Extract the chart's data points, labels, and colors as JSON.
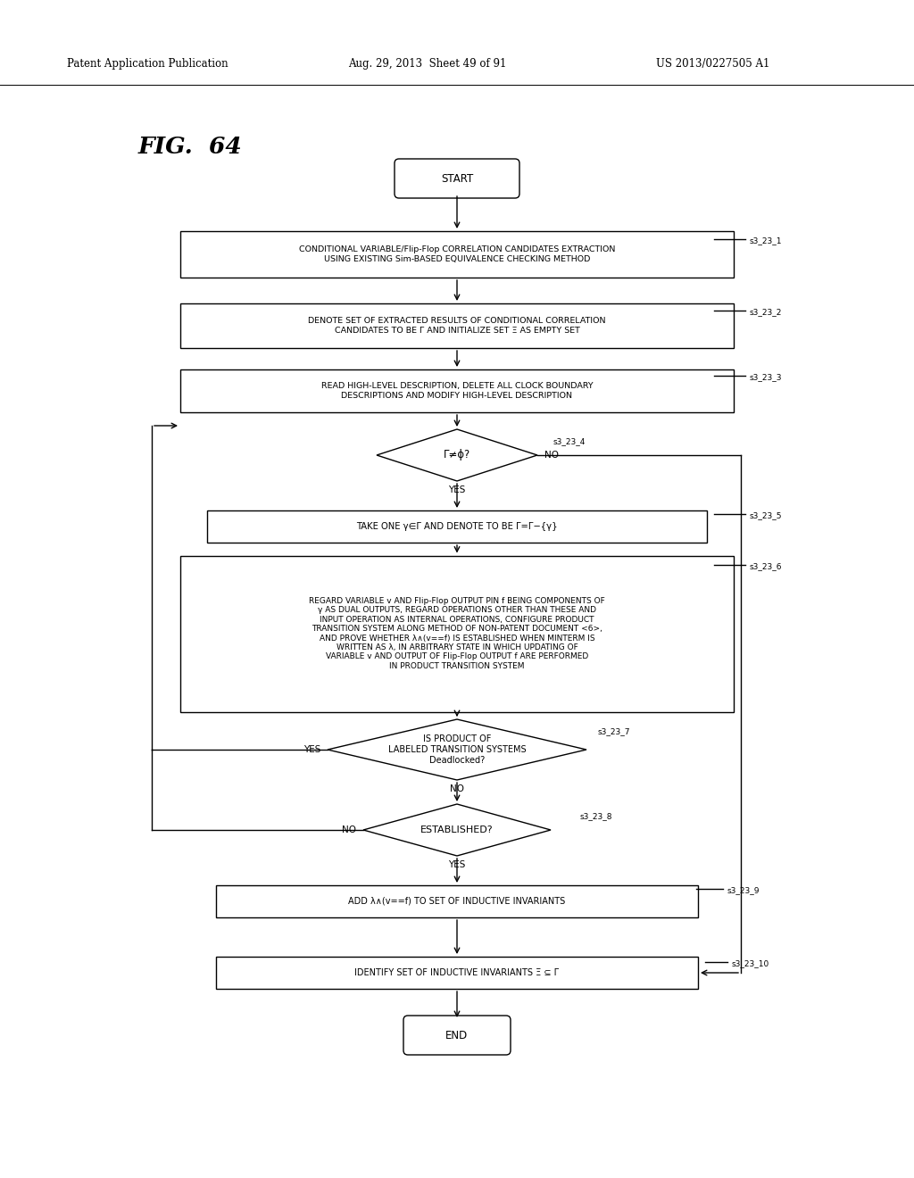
{
  "title": "FIG.  64",
  "header_left": "Patent Application Publication",
  "header_mid": "Aug. 29, 2013  Sheet 49 of 91",
  "header_right": "US 2013/0227505 A1",
  "bg_color": "#ffffff",
  "lw": 1.0,
  "start_label": "START",
  "end_label": "END",
  "s1_text": "CONDITIONAL VARIABLE/Flip-Flop CORRELATION CANDIDATES EXTRACTION\nUSING EXISTING Sim-BASED EQUIVALENCE CHECKING METHOD",
  "s2_text": "DENOTE SET OF EXTRACTED RESULTS OF CONDITIONAL CORRELATION\nCANDIDATES TO BE Γ AND INITIALIZE SET Ξ AS EMPTY SET",
  "s3_text": "READ HIGH-LEVEL DESCRIPTION, DELETE ALL CLOCK BOUNDARY\nDESCRIPTIONS AND MODIFY HIGH-LEVEL DESCRIPTION",
  "s4_text": "Γ≠ϕ?",
  "s5_text": "TAKE ONE γ∈Γ AND DENOTE TO BE Γ=Γ−{γ}",
  "s6_text": "REGARD VARIABLE v AND Flip-Flop OUTPUT PIN f BEING COMPONENTS OF\nγ AS DUAL OUTPUTS, REGARD OPERATIONS OTHER THAN THESE AND\nINPUT OPERATION AS INTERNAL OPERATIONS, CONFIGURE PRODUCT\nTRANSITION SYSTEM ALONG METHOD OF NON-PATENT DOCUMENT <6>,\nAND PROVE WHETHER λ∧(v==f) IS ESTABLISHED WHEN MINTERM IS\nWRITTEN AS λ, IN ARBITRARY STATE IN WHICH UPDATING OF\nVARIABLE v AND OUTPUT OF Flip-Flop OUTPUT f ARE PERFORMED\nIN PRODUCT TRANSITION SYSTEM",
  "s7_text": "IS PRODUCT OF\nLABELED TRANSITION SYSTEMS\nDeadlocked?",
  "s8_text": "ESTABLISHED?",
  "s9_text": "ADD λ∧(v==f) TO SET OF INDUCTIVE INVARIANTS",
  "s10_text": "IDENTIFY SET OF INDUCTIVE INVARIANTS Ξ ⊆ Γ",
  "tag1": "s3_23_1",
  "tag2": "s3_23_2",
  "tag3": "s3_23_3",
  "tag4": "s3_23_4",
  "tag5": "s3_23_5",
  "tag6": "s3_23_6",
  "tag7": "s3_23_7",
  "tag8": "s3_23_8",
  "tag9": "s3_23_9",
  "tag10": "s3_23_10"
}
